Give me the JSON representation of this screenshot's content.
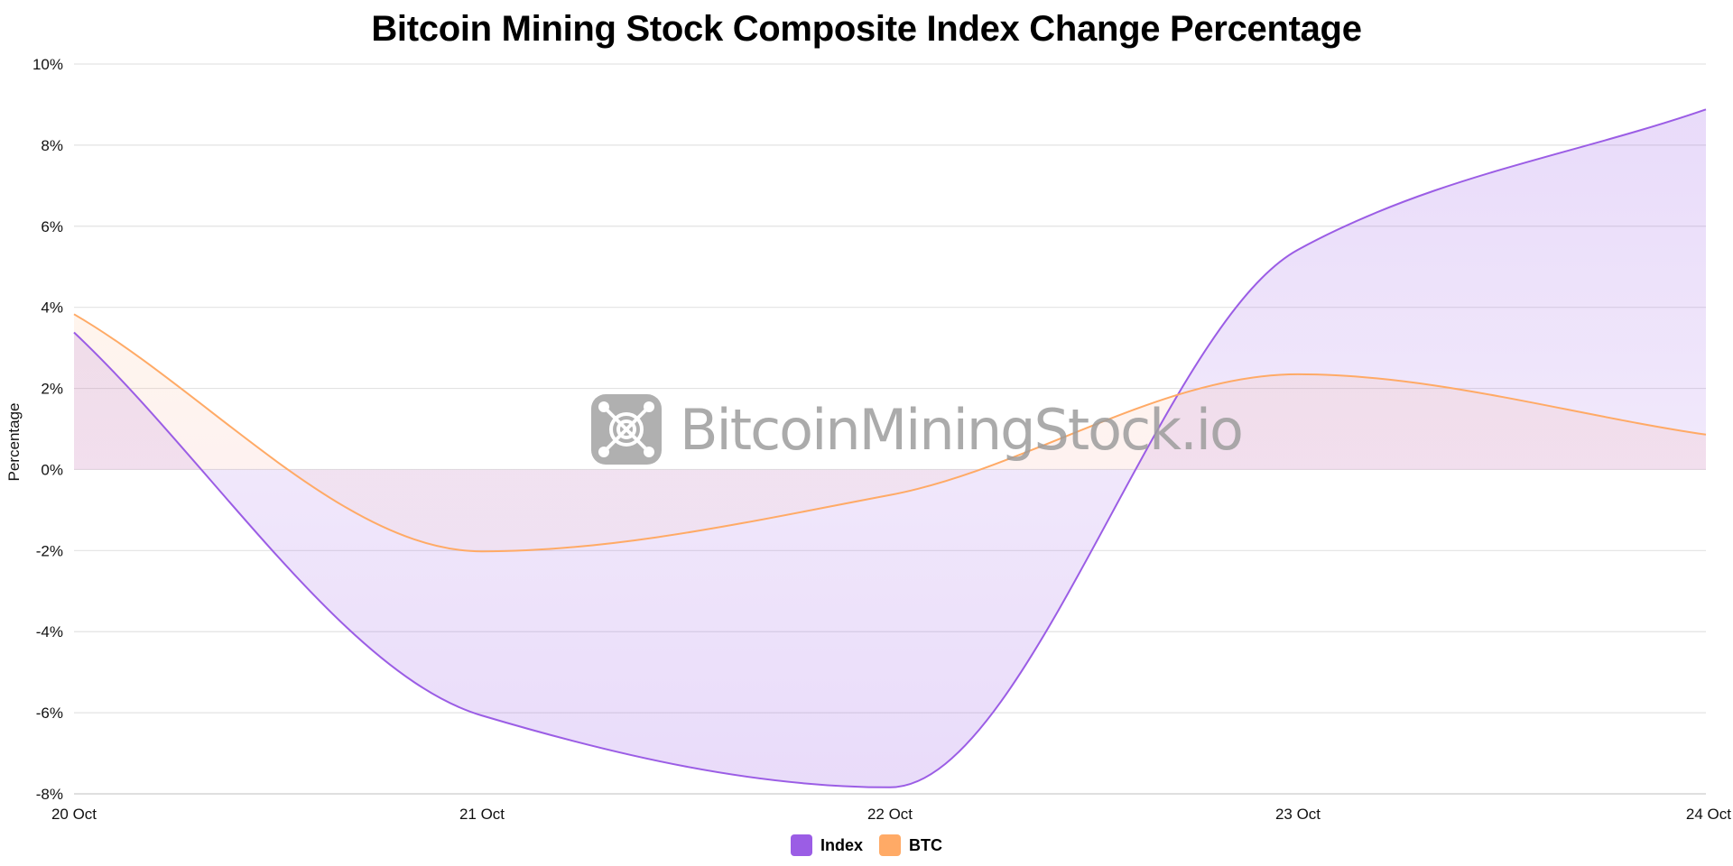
{
  "chart_data": {
    "type": "area",
    "title": "Bitcoin Mining Stock Composite Index Change Percentage",
    "xlabel": "",
    "ylabel": "Percentage",
    "categories": [
      "20 Oct",
      "21 Oct",
      "22 Oct",
      "23 Oct",
      "24 Oct"
    ],
    "ylim": [
      -8,
      10
    ],
    "yticks": [
      -8,
      -6,
      -4,
      -2,
      0,
      2,
      4,
      6,
      8,
      10
    ],
    "ytick_labels": [
      "-8%",
      "-6%",
      "-4%",
      "-2%",
      "0%",
      "2%",
      "4%",
      "6%",
      "8%",
      "10%"
    ],
    "grid": true,
    "legend_position": "bottom-center",
    "series": [
      {
        "name": "Index",
        "color": "#9b5de5",
        "fill_color": "#e6dcf8",
        "values": [
          3.38,
          -6.07,
          -7.84,
          5.42,
          8.88
        ]
      },
      {
        "name": "BTC",
        "color": "#ffaa66",
        "fill_color": "#fde6dc",
        "values": [
          3.83,
          -2.02,
          -0.63,
          2.35,
          0.86
        ]
      }
    ],
    "watermark": "BitcoinMiningStock.io"
  }
}
